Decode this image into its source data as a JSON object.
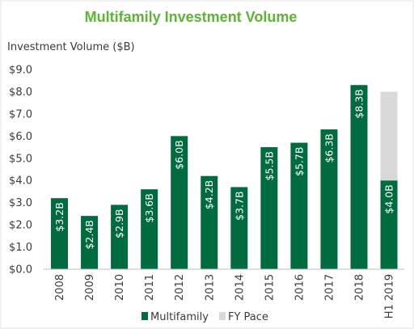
{
  "chart_data": {
    "type": "bar",
    "title": "Multifamily Investment Volume",
    "ylabel": "Investment Volume ($B)",
    "xlabel": "",
    "ylim": [
      0,
      9
    ],
    "y_ticks": [
      "$0.0",
      "$1.0",
      "$2.0",
      "$3.0",
      "$4.0",
      "$5.0",
      "$6.0",
      "$7.0",
      "$8.0",
      "$9.0"
    ],
    "categories": [
      "2008",
      "2009",
      "2010",
      "2011",
      "2012",
      "2013",
      "2014",
      "2015",
      "2016",
      "2017",
      "2018",
      "H1 2019"
    ],
    "stacked": true,
    "grid": false,
    "legend_position": "bottom",
    "series": [
      {
        "name": "Multifamily",
        "color": "#006b3f",
        "values": [
          3.2,
          2.4,
          2.9,
          3.6,
          6.0,
          4.2,
          3.7,
          5.5,
          5.7,
          6.3,
          8.3,
          4.0
        ],
        "labels": [
          "$3.2B",
          "$2.4B",
          "$2.9B",
          "$3.6B",
          "$6.0B",
          "$4.2B",
          "$3.7B",
          "$5.5B",
          "$5.7B",
          "$6.3B",
          "$8.3B",
          "$4.0B"
        ]
      },
      {
        "name": "FY Pace",
        "color": "#d9d9d9",
        "values": [
          0,
          0,
          0,
          0,
          0,
          0,
          0,
          0,
          0,
          0,
          0,
          4.0
        ]
      }
    ]
  }
}
